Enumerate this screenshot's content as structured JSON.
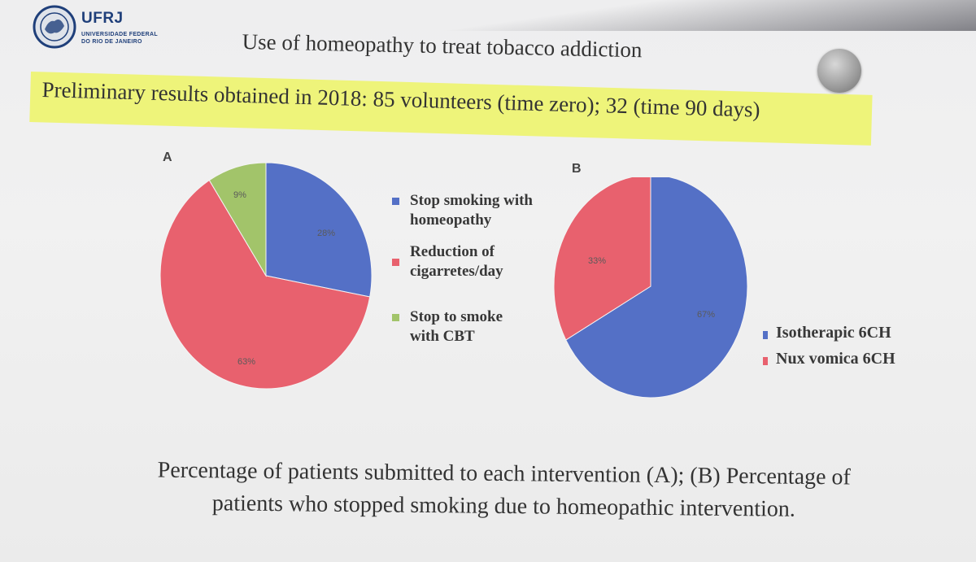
{
  "header": {
    "logo_title": "UFRJ",
    "logo_sub1": "UNIVERSIDADE FEDERAL",
    "logo_sub2": "DO RIO DE JANEIRO",
    "title": "Use of homeopathy to treat tobacco addiction",
    "subtitle": "Preliminary results obtained in 2018: 85 volunteers (time zero); 32 (time 90 days)",
    "highlight_color": "#eef47a"
  },
  "chart_data": [
    {
      "type": "pie",
      "panel_label": "A",
      "slices": [
        {
          "name": "Stop smoking with homeopathy",
          "legend_line1": "Stop smoking with",
          "legend_line2": "homeopathy",
          "value": 28,
          "label": "28%",
          "color": "#5470c6"
        },
        {
          "name": "Reduction of cigarretes/day",
          "legend_line1": "Reduction of",
          "legend_line2": "cigarretes/day",
          "value": 63,
          "label": "63%",
          "color": "#e8616e"
        },
        {
          "name": "Stop to smoke with CBT",
          "legend_line1": "Stop to smoke",
          "legend_line2": "with CBT",
          "value": 9,
          "label": "9%",
          "color": "#a2c46a"
        }
      ],
      "legend_placement": "right"
    },
    {
      "type": "pie",
      "panel_label": "B",
      "slices": [
        {
          "name": "Isotherapic 6CH",
          "value": 67,
          "label": "67%",
          "color": "#5470c6"
        },
        {
          "name": "Nux vomica 6CH",
          "value": 33,
          "label": "33%",
          "color": "#e8616e"
        }
      ],
      "legend_placement": "right"
    }
  ],
  "caption": {
    "line1": "Percentage of patients submitted to each intervention  (A); (B) Percentage of",
    "line2": "patients who stopped smoking due to homeopathic intervention."
  }
}
